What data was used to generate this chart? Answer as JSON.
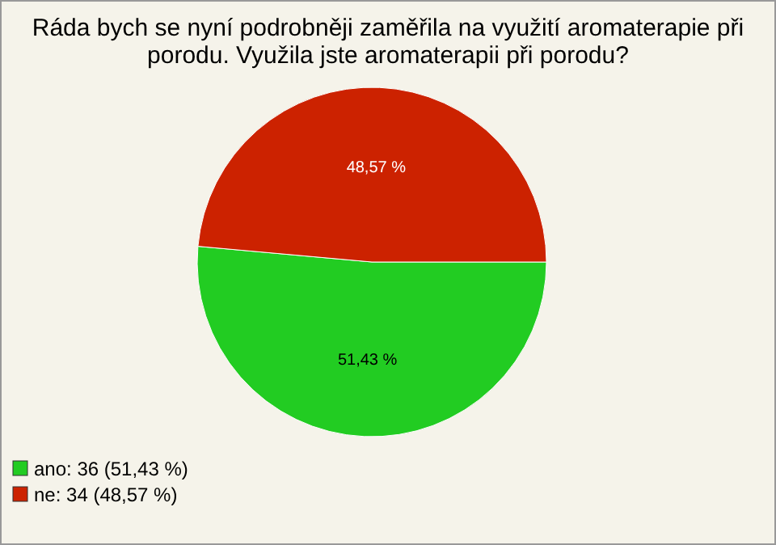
{
  "chart_data": {
    "type": "pie",
    "title": "Ráda bych se nyní podrobněji zaměřila na využití aromaterapie při porodu. Využila jste aromaterapii při porodu?",
    "categories": [
      "ano: 36 (51,43 %)",
      "ne: 34 (48,57 %)"
    ],
    "values": [
      51.43,
      48.57
    ],
    "value_labels": [
      "51,43 %",
      "48,57 %"
    ],
    "colors": [
      "#22cc22",
      "#cc2200"
    ],
    "legend": "bottom left"
  }
}
